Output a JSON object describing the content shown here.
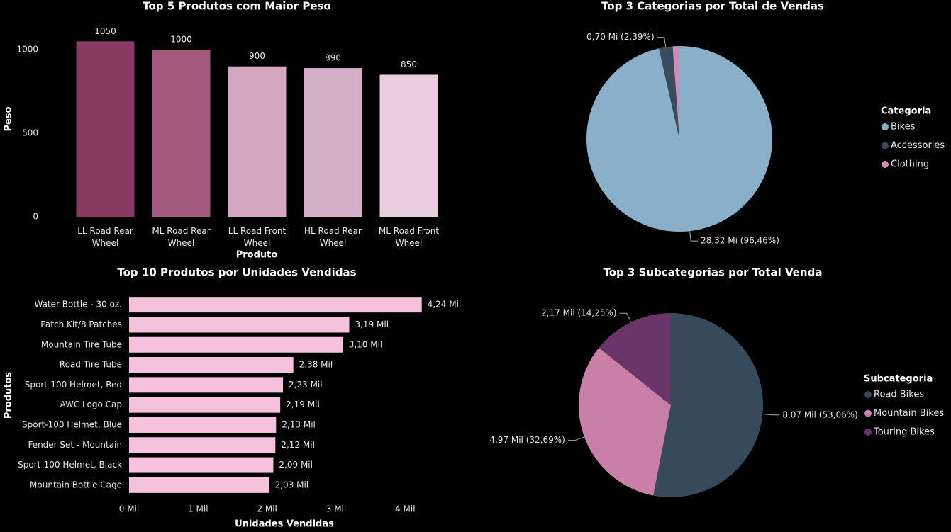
{
  "chart_data": [
    {
      "type": "bar",
      "title": "Top 5 Produtos com Maior Peso",
      "categories": [
        "LL Road Rear Wheel",
        "ML Road Rear Wheel",
        "LL Road Front Wheel",
        "HL Road Rear Wheel",
        "ML Road Front Wheel"
      ],
      "values": [
        1050,
        1000,
        900,
        890,
        850
      ],
      "colors": [
        "#8b3a62",
        "#a35a7e",
        "#d4a6c0",
        "#d4aec6",
        "#e8cede"
      ],
      "x_label": "Produto",
      "y_label": "Peso",
      "ylim": [
        0,
        1170
      ],
      "yticks": [
        0,
        500,
        1000
      ]
    },
    {
      "type": "pie",
      "title": "Top 3 Categorias por Total de Vendas",
      "legend_title": "Categoria",
      "legend": "right",
      "categories": [
        "Bikes",
        "Accessories",
        "Clothing"
      ],
      "values": [
        28.32,
        0.7,
        0.34
      ],
      "value_labels": [
        "28,32 Mi (96,46%)",
        "0,70 Mi (2,39%)",
        null
      ],
      "colors": [
        "#8aafc8",
        "#3a4d5e",
        "#d48bb5"
      ]
    },
    {
      "type": "bar",
      "orientation": "horizontal",
      "title": "Top 10 Produtos por Unidades Vendidas",
      "categories": [
        "Water Bottle - 30 oz.",
        "Patch Kit/8 Patches",
        "Mountain Tire Tube",
        "Road Tire Tube",
        "Sport-100 Helmet, Red",
        "AWC Logo Cap",
        "Sport-100 Helmet, Blue",
        "Fender Set - Mountain",
        "Sport-100 Helmet, Black",
        "Mountain Bottle Cage"
      ],
      "values": [
        4.24,
        3.19,
        3.1,
        2.38,
        2.23,
        2.19,
        2.13,
        2.12,
        2.09,
        2.03
      ],
      "value_labels": [
        "4,24 Mil",
        "3,19 Mil",
        "3,10 Mil",
        "2,38 Mil",
        "2,23 Mil",
        "2,19 Mil",
        "2,13 Mil",
        "2,12 Mil",
        "2,09 Mil",
        "2,03 Mil"
      ],
      "color": "#f5c1dd",
      "x_label": "Unidades Vendidas",
      "y_label": "Produtos",
      "xlim": [
        0,
        4.5
      ],
      "xticks": [
        {
          "value": 0,
          "label": "0 Mil"
        },
        {
          "value": 1,
          "label": "1 Mil"
        },
        {
          "value": 2,
          "label": "2 Mil"
        },
        {
          "value": 3,
          "label": "3 Mil"
        },
        {
          "value": 4,
          "label": "4 Mil"
        }
      ]
    },
    {
      "type": "pie",
      "title": "Top 3 Subcategorias por Total Venda",
      "legend_title": "Subcategoria",
      "legend": "right",
      "categories": [
        "Road Bikes",
        "Mountain Bikes",
        "Touring Bikes"
      ],
      "values": [
        8.07,
        4.97,
        2.17
      ],
      "value_labels": [
        "8,07 Mil (53,06%)",
        "4,97 Mil (32,69%)",
        "2,17 Mil (14,25%)"
      ],
      "colors": [
        "#374a5a",
        "#c97fa8",
        "#6a3568"
      ]
    }
  ]
}
